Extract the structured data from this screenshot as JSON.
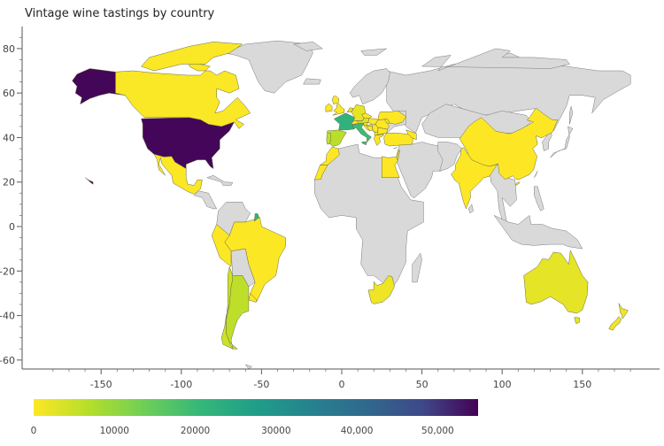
{
  "title": "Vintage wine tastings by country",
  "chart_data": {
    "type": "choropleth-map",
    "title": "Vintage wine tastings by country",
    "x_ticks": [
      "-150",
      "-100",
      "-50",
      "0",
      "50",
      "100",
      "150"
    ],
    "y_ticks": [
      "80",
      "60",
      "40",
      "20",
      "0",
      "-20",
      "-40",
      "-60"
    ],
    "colorbar_ticks": [
      "0",
      "10000",
      "20000",
      "30000",
      "40,000",
      "50,000"
    ],
    "colorbar_range": [
      0,
      55000
    ],
    "colormap": "viridis (reversed)",
    "no_data_color": "#d9d9d9",
    "values": [
      {
        "region": "USA",
        "value": 54500
      },
      {
        "region": "Alaska",
        "value": 54500
      },
      {
        "region": "Hawaii",
        "value": 54500
      },
      {
        "region": "France",
        "value": 22000
      },
      {
        "region": "Italy",
        "value": 19500
      },
      {
        "region": "French Guiana",
        "value": 22000
      },
      {
        "region": "Portugal",
        "value": 5500
      },
      {
        "region": "Spain",
        "value": 6500
      },
      {
        "region": "Argentina",
        "value": 6000
      },
      {
        "region": "Chile",
        "value": 4500
      },
      {
        "region": "Australia",
        "value": 2300
      },
      {
        "region": "Austria",
        "value": 3000
      },
      {
        "region": "Germany",
        "value": 2200
      },
      {
        "region": "New Zealand",
        "value": 1400
      },
      {
        "region": "South Africa",
        "value": 1400
      },
      {
        "region": "Canada",
        "value": 300
      },
      {
        "region": "Mexico",
        "value": 100
      },
      {
        "region": "Brazil",
        "value": 100
      },
      {
        "region": "Uruguay",
        "value": 100
      },
      {
        "region": "Peru",
        "value": 100
      },
      {
        "region": "China",
        "value": 10
      },
      {
        "region": "India",
        "value": 10
      },
      {
        "region": "Greece",
        "value": 500
      },
      {
        "region": "Hungary",
        "value": 100
      },
      {
        "region": "Romania",
        "value": 100
      },
      {
        "region": "Bulgaria",
        "value": 100
      },
      {
        "region": "Turkey",
        "value": 100
      },
      {
        "region": "Israel",
        "value": 500
      },
      {
        "region": "Lebanon",
        "value": 50
      },
      {
        "region": "Egypt",
        "value": 5
      },
      {
        "region": "Morocco",
        "value": 20
      },
      {
        "region": "England",
        "value": 70
      },
      {
        "region": "Switzerland",
        "value": 100
      },
      {
        "region": "Slovenia",
        "value": 100
      },
      {
        "region": "Croatia",
        "value": 70
      },
      {
        "region": "Serbia",
        "value": 10
      },
      {
        "region": "Moldova",
        "value": 50
      },
      {
        "region": "Ukraine",
        "value": 10
      },
      {
        "region": "Czech Republic",
        "value": 10
      },
      {
        "region": "Georgia",
        "value": 80
      },
      {
        "region": "Armenia",
        "value": 5
      },
      {
        "region": "Cyprus",
        "value": 10
      },
      {
        "region": "Luxembourg",
        "value": 5
      },
      {
        "region": "Macedonia",
        "value": 10
      },
      {
        "region": "Slovakia",
        "value": 5
      },
      {
        "region": "Bosnia and Herzegovina",
        "value": 2
      }
    ]
  }
}
